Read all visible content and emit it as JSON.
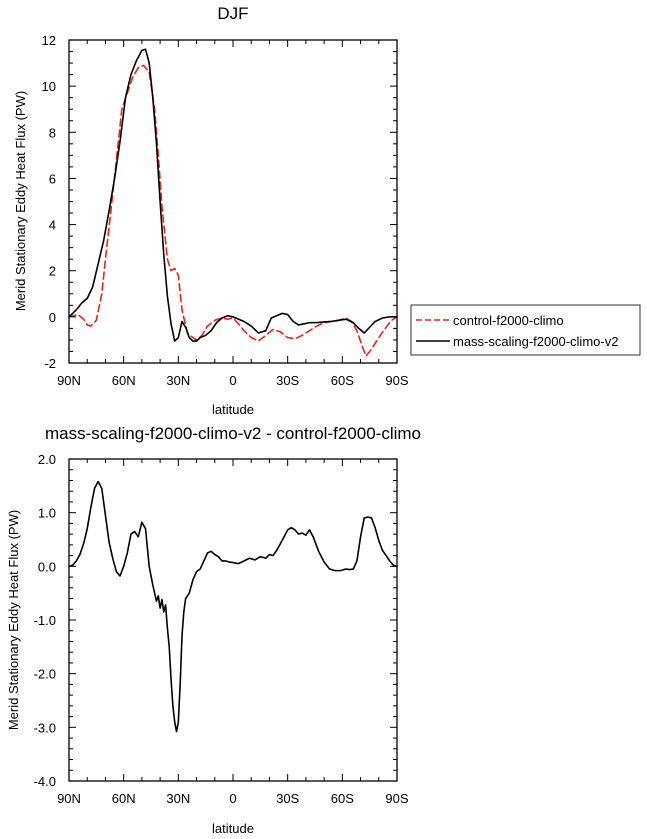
{
  "chart_data": [
    {
      "type": "line",
      "title": "DJF",
      "xlabel": "latitude",
      "ylabel": "Merid Stationary Eddy Heat Flux (PW)",
      "xlim": [
        90,
        -90
      ],
      "ylim": [
        -2,
        12
      ],
      "x_ticks": [
        {
          "value": 90,
          "label": "90N"
        },
        {
          "value": 60,
          "label": "60N"
        },
        {
          "value": 30,
          "label": "30N"
        },
        {
          "value": 0,
          "label": "0"
        },
        {
          "value": -30,
          "label": "30S"
        },
        {
          "value": -60,
          "label": "60S"
        },
        {
          "value": -90,
          "label": "90S"
        }
      ],
      "y_ticks": [
        {
          "value": -2,
          "label": "-2"
        },
        {
          "value": 0,
          "label": "0"
        },
        {
          "value": 2,
          "label": "2"
        },
        {
          "value": 4,
          "label": "4"
        },
        {
          "value": 6,
          "label": "6"
        },
        {
          "value": 8,
          "label": "8"
        },
        {
          "value": 10,
          "label": "10"
        },
        {
          "value": 12,
          "label": "12"
        }
      ],
      "legend": "right",
      "series": [
        {
          "name": "control-f2000-climo",
          "color": "#e8241c",
          "dash": "dashed",
          "x": [
            90,
            85,
            82,
            80,
            78,
            75,
            72,
            70,
            67,
            64,
            61,
            58,
            55,
            52,
            49,
            46,
            43,
            41,
            39,
            36,
            34,
            32,
            30,
            28,
            25,
            22,
            20,
            17,
            14,
            10,
            6,
            3,
            0,
            -3,
            -6,
            -10,
            -14,
            -18,
            -22,
            -26,
            -30,
            -34,
            -38,
            -42,
            -46,
            -50,
            -54,
            -58,
            -62,
            -65,
            -68,
            -71,
            -73,
            -76,
            -80,
            -84,
            -87,
            -90
          ],
          "y": [
            0,
            0.1,
            -0.1,
            -0.35,
            -0.4,
            -0.15,
            1.0,
            2.5,
            4.6,
            6.8,
            9.0,
            9.7,
            10.4,
            10.8,
            10.9,
            10.6,
            9.0,
            7.0,
            4.8,
            2.5,
            2.0,
            2.1,
            1.8,
            0.3,
            -0.7,
            -0.9,
            -1.0,
            -0.8,
            -0.4,
            -0.15,
            -0.05,
            -0.1,
            -0.05,
            -0.3,
            -0.6,
            -0.9,
            -1.05,
            -0.8,
            -0.55,
            -0.65,
            -0.9,
            -0.95,
            -0.8,
            -0.6,
            -0.4,
            -0.25,
            -0.2,
            -0.15,
            -0.05,
            -0.2,
            -0.6,
            -1.3,
            -1.7,
            -1.4,
            -0.9,
            -0.45,
            -0.15,
            0
          ]
        },
        {
          "name": "mass-scaling-f2000-climo-v2",
          "color": "#000000",
          "dash": "solid",
          "x": [
            90,
            86,
            83,
            80,
            77,
            74,
            71,
            68,
            65,
            62,
            59,
            56,
            53,
            50,
            48,
            46,
            44,
            42,
            40,
            38,
            36,
            34,
            32,
            30,
            28,
            26,
            24,
            22,
            20,
            18,
            15,
            12,
            9,
            6,
            3,
            0,
            -3,
            -6,
            -10,
            -14,
            -18,
            -21,
            -24,
            -27,
            -30,
            -33,
            -36,
            -39,
            -42,
            -46,
            -50,
            -54,
            -58,
            -62,
            -66,
            -69,
            -72,
            -75,
            -78,
            -82,
            -86,
            -90
          ],
          "y": [
            0,
            0.3,
            0.6,
            0.8,
            1.3,
            2.3,
            3.3,
            4.6,
            6.0,
            7.6,
            9.5,
            10.5,
            11.1,
            11.55,
            11.6,
            11.0,
            9.5,
            7.5,
            5.0,
            2.7,
            0.9,
            -0.3,
            -1.05,
            -0.9,
            -0.2,
            -0.45,
            -0.9,
            -1.05,
            -1.05,
            -0.9,
            -0.8,
            -0.6,
            -0.25,
            -0.05,
            0.05,
            0.0,
            -0.1,
            -0.2,
            -0.4,
            -0.7,
            -0.6,
            -0.05,
            0.05,
            0.15,
            0.1,
            -0.2,
            -0.35,
            -0.3,
            -0.25,
            -0.25,
            -0.22,
            -0.2,
            -0.15,
            -0.1,
            -0.25,
            -0.5,
            -0.7,
            -0.45,
            -0.2,
            -0.05,
            0,
            0
          ]
        }
      ]
    },
    {
      "type": "line",
      "title": "mass-scaling-f2000-climo-v2 - control-f2000-climo",
      "xlabel": "latitude",
      "ylabel": "Merid Stationary Eddy Heat Flux (PW)",
      "xlim": [
        90,
        -90
      ],
      "ylim": [
        -4,
        2
      ],
      "x_ticks": [
        {
          "value": 90,
          "label": "90N"
        },
        {
          "value": 60,
          "label": "60N"
        },
        {
          "value": 30,
          "label": "30N"
        },
        {
          "value": 0,
          "label": "0"
        },
        {
          "value": -30,
          "label": "30S"
        },
        {
          "value": -60,
          "label": "60S"
        },
        {
          "value": -90,
          "label": "90S"
        }
      ],
      "y_ticks": [
        {
          "value": -4,
          "label": "-4.0"
        },
        {
          "value": -3,
          "label": "-3.0"
        },
        {
          "value": -2,
          "label": "-2.0"
        },
        {
          "value": -1,
          "label": "-1.0"
        },
        {
          "value": 0,
          "label": "0.0"
        },
        {
          "value": 1,
          "label": "1.0"
        },
        {
          "value": 2,
          "label": "2.0"
        }
      ],
      "series": [
        {
          "color": "#000000",
          "dash": "solid",
          "x": [
            90,
            88,
            86,
            84,
            82,
            80,
            78,
            76,
            74,
            72,
            70,
            68,
            66,
            64,
            62,
            60,
            58,
            56,
            54,
            52,
            50,
            48,
            46,
            44,
            42,
            41,
            40,
            39,
            38,
            37,
            36,
            35,
            34,
            33,
            32,
            31,
            30,
            29,
            28,
            27,
            26,
            24,
            22,
            20,
            18,
            16,
            14,
            12,
            10,
            8,
            6,
            4,
            2,
            0,
            -3,
            -6,
            -9,
            -12,
            -15,
            -18,
            -20,
            -22,
            -24,
            -26,
            -28,
            -30,
            -32,
            -34,
            -36,
            -38,
            -40,
            -42,
            -44,
            -47,
            -50,
            -53,
            -56,
            -59,
            -62,
            -64,
            -66,
            -68,
            -70,
            -72,
            -74,
            -76,
            -78,
            -80,
            -82,
            -84,
            -86,
            -88,
            -90
          ],
          "y": [
            0,
            0.02,
            0.1,
            0.22,
            0.42,
            0.7,
            1.1,
            1.45,
            1.58,
            1.45,
            0.95,
            0.45,
            0.15,
            -0.1,
            -0.18,
            0.0,
            0.25,
            0.6,
            0.65,
            0.55,
            0.82,
            0.7,
            0.0,
            -0.35,
            -0.65,
            -0.55,
            -0.78,
            -0.62,
            -0.85,
            -0.72,
            -1.15,
            -1.5,
            -2.1,
            -2.6,
            -2.9,
            -3.08,
            -2.9,
            -2.2,
            -1.3,
            -0.85,
            -0.6,
            -0.5,
            -0.25,
            -0.1,
            -0.05,
            0.1,
            0.25,
            0.28,
            0.22,
            0.18,
            0.1,
            0.1,
            0.08,
            0.07,
            0.05,
            0.1,
            0.15,
            0.12,
            0.18,
            0.15,
            0.22,
            0.2,
            0.3,
            0.42,
            0.55,
            0.68,
            0.72,
            0.68,
            0.6,
            0.62,
            0.58,
            0.68,
            0.55,
            0.28,
            0.08,
            -0.05,
            -0.08,
            -0.08,
            -0.05,
            -0.06,
            -0.05,
            0.1,
            0.55,
            0.9,
            0.92,
            0.9,
            0.72,
            0.48,
            0.3,
            0.2,
            0.1,
            0.02,
            0
          ]
        }
      ]
    }
  ]
}
